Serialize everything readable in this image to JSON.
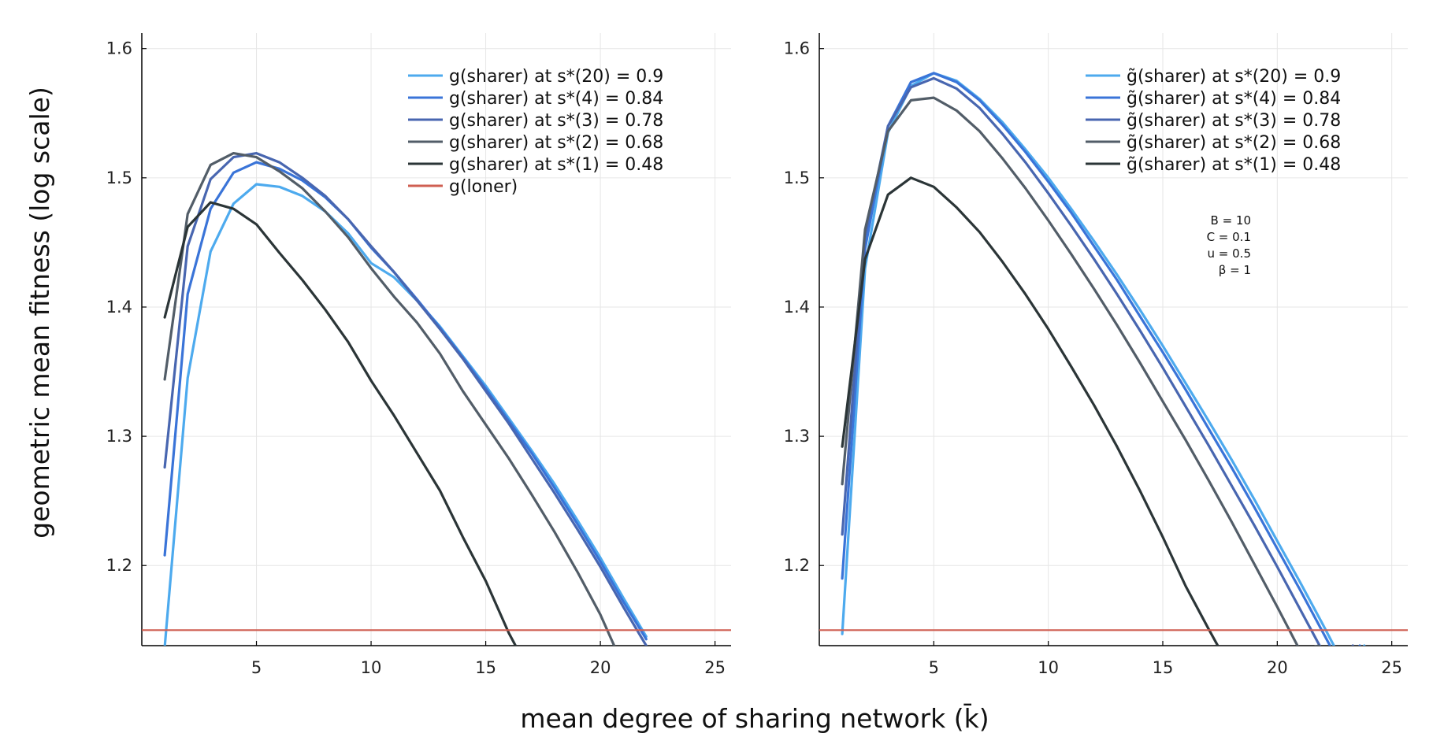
{
  "figure": {
    "ylabel": "geometric mean fitness (log scale)",
    "xlabel": "mean degree of sharing network (k̄)"
  },
  "chart_data": [
    {
      "type": "line",
      "xlim": [
        0,
        25.7
      ],
      "ylim": [
        1.138,
        1.612
      ],
      "xticks": [
        5,
        10,
        15,
        20,
        25
      ],
      "yticks": [
        1.2,
        1.3,
        1.4,
        1.5,
        1.6
      ],
      "grid": true,
      "legend": "top-right",
      "series": [
        {
          "name": "g(sharer) at s*(20) = 0.9",
          "color": "#4daaee",
          "x": [
            1,
            2,
            3,
            4,
            5,
            6,
            7,
            8,
            9,
            10,
            11,
            12,
            13,
            14,
            15,
            16,
            17,
            18,
            19,
            20,
            21,
            22
          ],
          "y": [
            1.137,
            1.345,
            1.443,
            1.48,
            1.495,
            1.493,
            1.486,
            1.474,
            1.457,
            1.434,
            1.423,
            1.405,
            1.385,
            1.362,
            1.339,
            1.314,
            1.289,
            1.263,
            1.235,
            1.206,
            1.175,
            1.145
          ]
        },
        {
          "name": "g(sharer) at s*(4) = 0.84",
          "color": "#3a74d8",
          "x": [
            1,
            2,
            3,
            4,
            5,
            6,
            7,
            8,
            9,
            10,
            11,
            12,
            13,
            14,
            15,
            16,
            17,
            18,
            19,
            20,
            21,
            22
          ],
          "y": [
            1.208,
            1.41,
            1.476,
            1.504,
            1.512,
            1.507,
            1.498,
            1.485,
            1.468,
            1.446,
            1.427,
            1.406,
            1.384,
            1.361,
            1.337,
            1.312,
            1.287,
            1.26,
            1.232,
            1.203,
            1.172,
            1.143
          ]
        },
        {
          "name": "g(sharer) at s*(3) = 0.78",
          "color": "#4866b0",
          "x": [
            1,
            2,
            3,
            4,
            5,
            6,
            7,
            8,
            9,
            10,
            11,
            12,
            13,
            14,
            15,
            16,
            17,
            18,
            19,
            20,
            21,
            22
          ],
          "y": [
            1.276,
            1.447,
            1.499,
            1.516,
            1.519,
            1.512,
            1.5,
            1.486,
            1.468,
            1.447,
            1.427,
            1.405,
            1.383,
            1.36,
            1.335,
            1.31,
            1.283,
            1.256,
            1.228,
            1.199,
            1.168,
            1.138
          ]
        },
        {
          "name": "g(sharer) at s*(2) = 0.68",
          "color": "#525d68",
          "x": [
            1,
            2,
            3,
            4,
            5,
            6,
            7,
            8,
            9,
            10,
            11,
            12,
            13,
            14,
            15,
            16,
            17,
            18,
            19,
            20,
            20.6
          ],
          "y": [
            1.344,
            1.472,
            1.51,
            1.519,
            1.516,
            1.505,
            1.492,
            1.474,
            1.454,
            1.43,
            1.408,
            1.388,
            1.364,
            1.335,
            1.309,
            1.283,
            1.255,
            1.226,
            1.195,
            1.162,
            1.138
          ]
        },
        {
          "name": "g(sharer) at s*(1) = 0.48",
          "color": "#2b3537",
          "x": [
            1,
            2,
            3,
            4,
            5,
            6,
            7,
            8,
            9,
            10,
            11,
            12,
            13,
            14,
            15,
            16,
            16.3
          ],
          "y": [
            1.392,
            1.462,
            1.481,
            1.476,
            1.464,
            1.442,
            1.421,
            1.398,
            1.373,
            1.343,
            1.316,
            1.287,
            1.258,
            1.222,
            1.188,
            1.148,
            1.138
          ]
        },
        {
          "name": "g(loner)",
          "color": "#cf5f52",
          "x": [
            0,
            25.7
          ],
          "y": [
            1.15,
            1.15
          ]
        }
      ]
    },
    {
      "type": "line",
      "xlim": [
        0,
        25.7
      ],
      "ylim": [
        1.138,
        1.612
      ],
      "xticks": [
        5,
        10,
        15,
        20,
        25
      ],
      "yticks": [
        1.2,
        1.3,
        1.4,
        1.5,
        1.6
      ],
      "grid": true,
      "legend": "top-right",
      "annotations": [
        "B = 10",
        "C = 0.1",
        "u = 0.5",
        "β = 1"
      ],
      "series": [
        {
          "name": "g̃(sharer) at s*(20) = 0.9",
          "color": "#4daaee",
          "x": [
            1,
            2,
            3,
            4,
            5,
            6,
            7,
            8,
            9,
            10,
            11,
            12,
            13,
            14,
            15,
            16,
            17,
            18,
            19,
            20,
            21,
            22,
            23,
            23.8
          ],
          "y": [
            1.147,
            1.43,
            1.535,
            1.571,
            1.581,
            1.575,
            1.561,
            1.543,
            1.522,
            1.5,
            1.476,
            1.451,
            1.425,
            1.398,
            1.37,
            1.341,
            1.312,
            1.282,
            1.251,
            1.219,
            1.187,
            1.154,
            1.12,
            1.138
          ]
        },
        {
          "name": "g̃(sharer) at s*(4) = 0.84",
          "color": "#3a74d8",
          "x": [
            1,
            2,
            3,
            4,
            5,
            6,
            7,
            8,
            9,
            10,
            11,
            12,
            13,
            14,
            15,
            16,
            17,
            18,
            19,
            20,
            21,
            22,
            23,
            23.6
          ],
          "y": [
            1.19,
            1.445,
            1.54,
            1.574,
            1.581,
            1.574,
            1.56,
            1.541,
            1.52,
            1.497,
            1.473,
            1.447,
            1.421,
            1.393,
            1.365,
            1.336,
            1.306,
            1.276,
            1.245,
            1.213,
            1.181,
            1.148,
            1.115,
            1.138
          ]
        },
        {
          "name": "g̃(sharer) at s*(3) = 0.78",
          "color": "#4866b0",
          "x": [
            1,
            2,
            3,
            4,
            5,
            6,
            7,
            8,
            9,
            10,
            11,
            12,
            13,
            14,
            15,
            16,
            17,
            18,
            19,
            20,
            21,
            22,
            23,
            23.3
          ],
          "y": [
            1.224,
            1.455,
            1.54,
            1.57,
            1.577,
            1.569,
            1.554,
            1.534,
            1.512,
            1.488,
            1.463,
            1.437,
            1.41,
            1.382,
            1.353,
            1.323,
            1.293,
            1.262,
            1.231,
            1.199,
            1.166,
            1.133,
            1.1,
            1.138
          ]
        },
        {
          "name": "g̃(sharer) at s*(2) = 0.68",
          "color": "#525d68",
          "x": [
            1,
            2,
            3,
            4,
            5,
            6,
            7,
            8,
            9,
            10,
            11,
            12,
            13,
            14,
            15,
            16,
            17,
            18,
            19,
            20,
            21,
            21.8
          ],
          "y": [
            1.263,
            1.46,
            1.536,
            1.56,
            1.562,
            1.552,
            1.536,
            1.515,
            1.492,
            1.467,
            1.441,
            1.414,
            1.386,
            1.357,
            1.327,
            1.297,
            1.266,
            1.234,
            1.201,
            1.168,
            1.134,
            1.138
          ]
        },
        {
          "name": "g̃(sharer) at s*(1) = 0.48",
          "color": "#2b3537",
          "x": [
            1,
            2,
            3,
            4,
            5,
            6,
            7,
            8,
            9,
            10,
            11,
            12,
            13,
            14,
            15,
            16,
            17,
            17.4
          ],
          "y": [
            1.292,
            1.437,
            1.487,
            1.5,
            1.493,
            1.477,
            1.458,
            1.435,
            1.41,
            1.383,
            1.354,
            1.324,
            1.292,
            1.258,
            1.222,
            1.184,
            1.151,
            1.138
          ]
        },
        {
          "name": "",
          "color": "#cf5f52",
          "x": [
            0,
            25.7
          ],
          "y": [
            1.15,
            1.15
          ]
        }
      ]
    }
  ]
}
